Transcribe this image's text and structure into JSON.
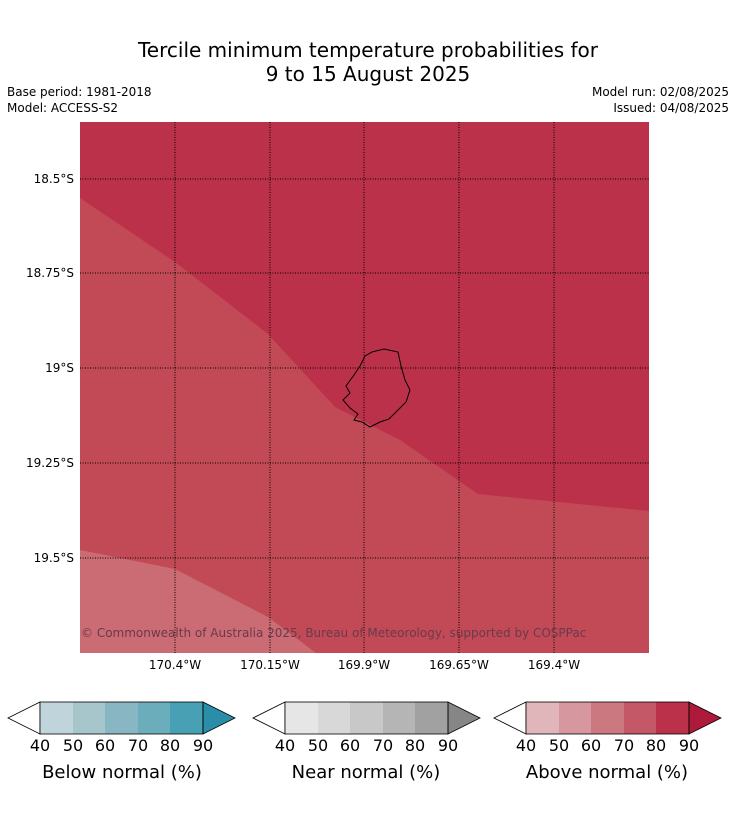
{
  "header": {
    "title_line1": "Tercile minimum temperature probabilities for",
    "title_line2": "9 to 15 August 2025",
    "base_period": "Base period: 1981-2018",
    "model": "Model: ACCESS-S2",
    "model_run": "Model run: 02/08/2025",
    "issued": "Issued: 04/08/2025"
  },
  "map": {
    "lat_labels": [
      "18.5°S",
      "18.75°S",
      "19°S",
      "19.25°S",
      "19.5°S"
    ],
    "lon_labels": [
      "170.4°W",
      "170.15°W",
      "169.9°W",
      "169.65°W",
      "169.4°W"
    ],
    "copyright": "© Commonwealth of Australia 2025, Bureau of Meteorology, supported by COSPPac",
    "region_colors": {
      "above_80_90": "#bb314a",
      "above_70_80": "#c24a57",
      "above_60_70": "#cb6b73"
    }
  },
  "colorbars": [
    {
      "label": "Below normal (%)",
      "ticks": [
        "40",
        "50",
        "60",
        "70",
        "80",
        "90"
      ],
      "colors": [
        "#ffffff",
        "#c0d4db",
        "#a6c6cc",
        "#88b6c2",
        "#6cadbc",
        "#47a0b4",
        "#2b8ea8"
      ]
    },
    {
      "label": "Near normal (%)",
      "ticks": [
        "40",
        "50",
        "60",
        "70",
        "80",
        "90"
      ],
      "colors": [
        "#ffffff",
        "#e6e6e6",
        "#d8d8d8",
        "#c8c8c8",
        "#b5b5b5",
        "#a1a1a1",
        "#868686"
      ]
    },
    {
      "label": "Above normal (%)",
      "ticks": [
        "40",
        "50",
        "60",
        "70",
        "80",
        "90"
      ],
      "colors": [
        "#ffffff",
        "#e0b6ba",
        "#d6979e",
        "#cb7880",
        "#c55866",
        "#bb314a",
        "#ad1a3a"
      ]
    }
  ]
}
